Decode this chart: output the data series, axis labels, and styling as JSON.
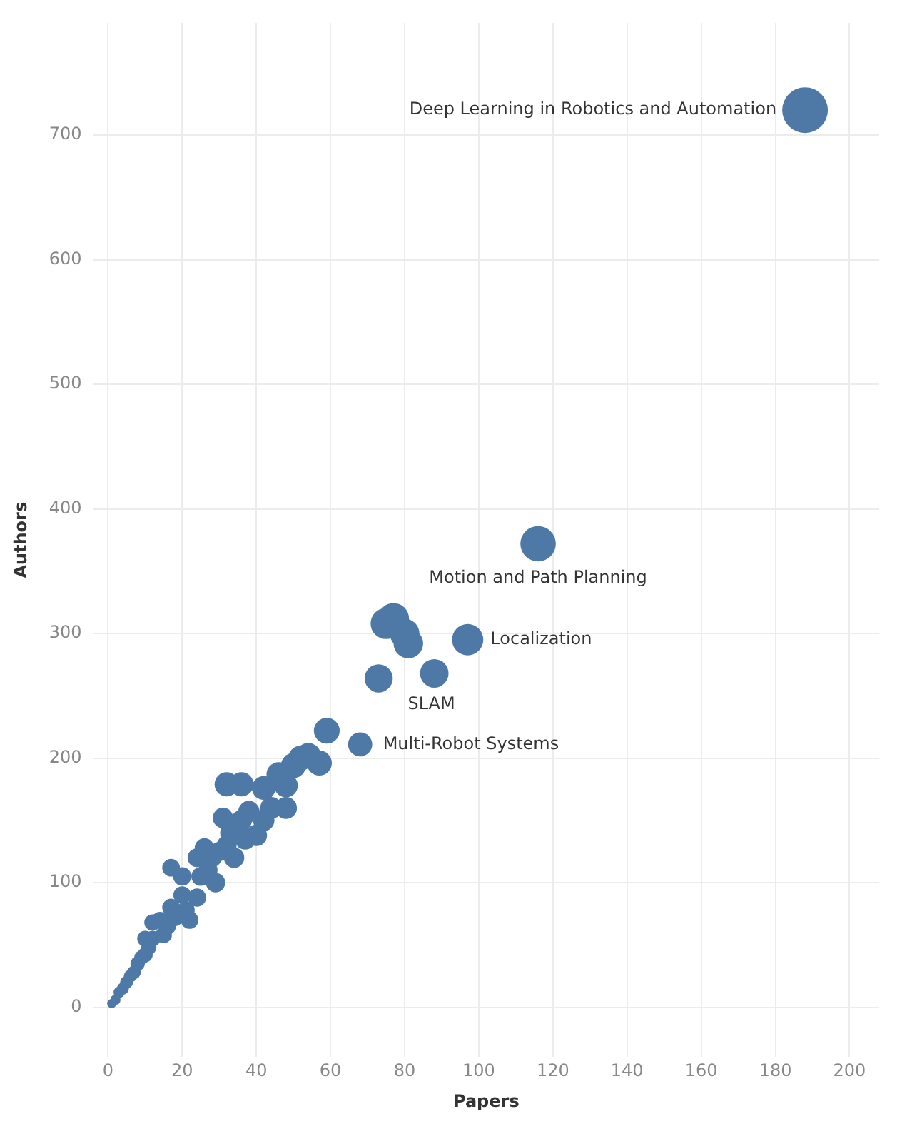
{
  "chart_data": {
    "type": "bubble",
    "xlabel": "Papers",
    "ylabel": "Authors",
    "xlim": [
      -4,
      208
    ],
    "xticks": [
      0,
      20,
      40,
      60,
      80,
      100,
      120,
      140,
      160,
      180,
      200
    ],
    "ylim": [
      -40,
      790
    ],
    "yticks": [
      0,
      100,
      200,
      300,
      400,
      500,
      600,
      700
    ],
    "grid": true,
    "legend": false,
    "series": [
      {
        "color": "#4e79a7",
        "x": [
          1,
          2,
          3,
          4,
          5,
          6,
          7,
          8,
          9,
          10,
          11,
          12,
          10,
          12,
          14,
          15,
          16,
          18,
          17,
          20,
          21,
          24,
          25,
          27,
          28,
          29,
          30,
          24,
          26,
          32,
          33,
          31,
          36,
          34,
          37,
          42,
          38,
          44,
          48,
          40,
          17,
          22,
          20,
          32,
          36,
          42,
          46,
          50,
          54,
          57,
          59,
          48,
          52,
          73,
          75,
          77,
          80,
          81,
          88,
          97,
          68,
          116,
          188
        ],
        "values": [
          3,
          6,
          12,
          15,
          20,
          25,
          28,
          35,
          40,
          42,
          48,
          55,
          55,
          68,
          70,
          58,
          65,
          72,
          80,
          90,
          78,
          88,
          105,
          110,
          120,
          100,
          125,
          120,
          128,
          130,
          140,
          152,
          150,
          120,
          135,
          150,
          157,
          160,
          160,
          138,
          112,
          70,
          105,
          179,
          179,
          176,
          187,
          194,
          202,
          196,
          222,
          178,
          200,
          264,
          308,
          312,
          300,
          292,
          268,
          295,
          211,
          372,
          720
        ],
        "sizes": [
          0.04,
          0.05,
          0.06,
          0.07,
          0.08,
          0.08,
          0.09,
          0.1,
          0.1,
          0.11,
          0.11,
          0.12,
          0.12,
          0.13,
          0.13,
          0.13,
          0.14,
          0.14,
          0.15,
          0.15,
          0.15,
          0.16,
          0.17,
          0.17,
          0.18,
          0.18,
          0.18,
          0.17,
          0.18,
          0.19,
          0.2,
          0.2,
          0.21,
          0.2,
          0.21,
          0.22,
          0.22,
          0.23,
          0.23,
          0.22,
          0.15,
          0.15,
          0.16,
          0.28,
          0.28,
          0.27,
          0.28,
          0.3,
          0.31,
          0.3,
          0.32,
          0.27,
          0.3,
          0.38,
          0.46,
          0.46,
          0.42,
          0.42,
          0.39,
          0.47,
          0.28,
          0.6,
          1
        ]
      }
    ],
    "annotations": [
      {
        "text": "Deep Learning in Robotics and Automation",
        "x": 188,
        "y": 720
      },
      {
        "text": "Motion and Path Planning",
        "x": 116,
        "y": 372
      },
      {
        "text": "Localization",
        "x": 97,
        "y": 295
      },
      {
        "text": "SLAM",
        "x": 88,
        "y": 268
      },
      {
        "text": "Multi-Robot Systems",
        "x": 68,
        "y": 211
      }
    ]
  }
}
